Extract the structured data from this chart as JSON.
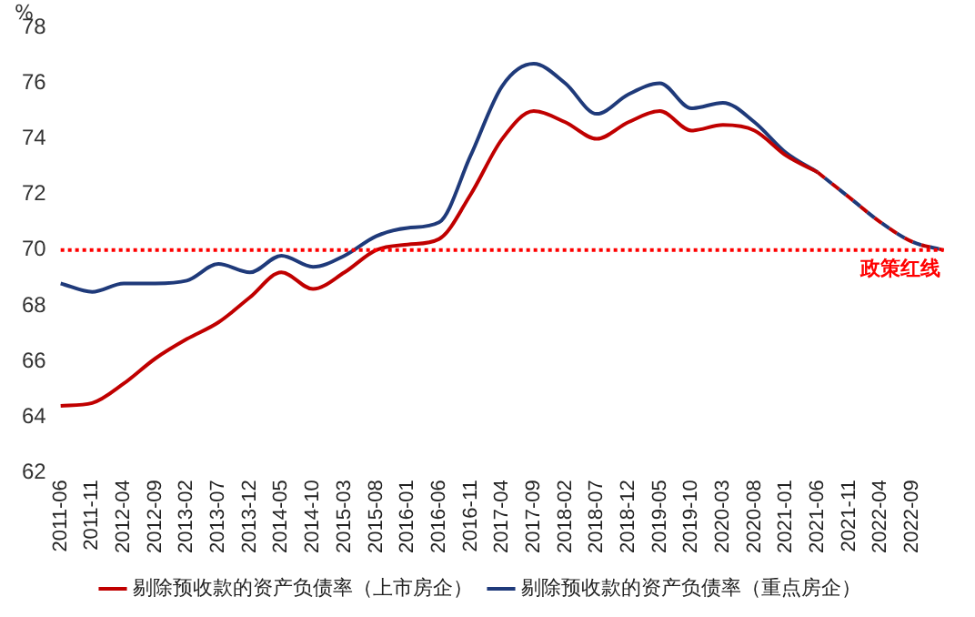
{
  "chart_data": {
    "type": "line",
    "ylabel": "%",
    "categories": [
      "2011-06",
      "2011-11",
      "2012-04",
      "2012-09",
      "2013-02",
      "2013-07",
      "2013-12",
      "2014-05",
      "2014-10",
      "2015-03",
      "2015-08",
      "2016-01",
      "2016-06",
      "2016-11",
      "2017-04",
      "2017-09",
      "2018-02",
      "2018-07",
      "2018-12",
      "2019-05",
      "2019-10",
      "2020-03",
      "2020-08",
      "2021-01",
      "2021-06",
      "2021-11",
      "2022-04",
      "2022-09",
      null
    ],
    "series": [
      {
        "name": "剔除预收款的资产负债率（上市房企）",
        "color": "#c00000",
        "line_style": "solid",
        "values": [
          64.4,
          64.5,
          65.2,
          66.1,
          66.8,
          67.4,
          68.3,
          69.2,
          68.6,
          69.2,
          70.0,
          70.2,
          70.4,
          72.0,
          74.0,
          75.0,
          74.6,
          74.0,
          74.6,
          75.0,
          74.3,
          74.5,
          74.3,
          73.4,
          72.8,
          null,
          null,
          null,
          null
        ]
      },
      {
        "name": "剔除预收款的资产负债率（重点房企）",
        "color": "#1f3a7a",
        "line_style": "solid",
        "values": [
          68.8,
          68.5,
          68.8,
          68.8,
          68.9,
          69.5,
          69.2,
          69.8,
          69.4,
          69.8,
          70.5,
          70.8,
          71.0,
          73.4,
          75.9,
          76.7,
          76.0,
          74.9,
          75.6,
          76.0,
          75.1,
          75.3,
          74.6,
          73.5,
          72.8,
          null,
          null,
          null,
          null
        ]
      },
      {
        "color": "#c00000",
        "line_style": "dashed",
        "values": [
          null,
          null,
          null,
          null,
          null,
          null,
          null,
          null,
          null,
          null,
          null,
          null,
          null,
          null,
          null,
          null,
          null,
          null,
          null,
          null,
          null,
          null,
          null,
          null,
          72.8,
          71.9,
          71.0,
          70.3,
          70.0
        ]
      },
      {
        "color": "#1f3a7a",
        "line_style": "dashed",
        "values": [
          null,
          null,
          null,
          null,
          null,
          null,
          null,
          null,
          null,
          null,
          null,
          null,
          null,
          null,
          null,
          null,
          null,
          null,
          null,
          null,
          null,
          null,
          null,
          null,
          72.8,
          71.9,
          71.0,
          70.3,
          70.0
        ]
      }
    ],
    "ylim": [
      62,
      78
    ],
    "yticks": [
      62,
      64,
      66,
      68,
      70,
      72,
      74,
      76,
      78
    ],
    "ref_lines": [
      {
        "axis": "y",
        "value": 70,
        "label": "政策红线",
        "color": "#ff0000",
        "line_style": "dotted"
      }
    ],
    "grid": false,
    "legend": "bottom",
    "marker": "none"
  }
}
